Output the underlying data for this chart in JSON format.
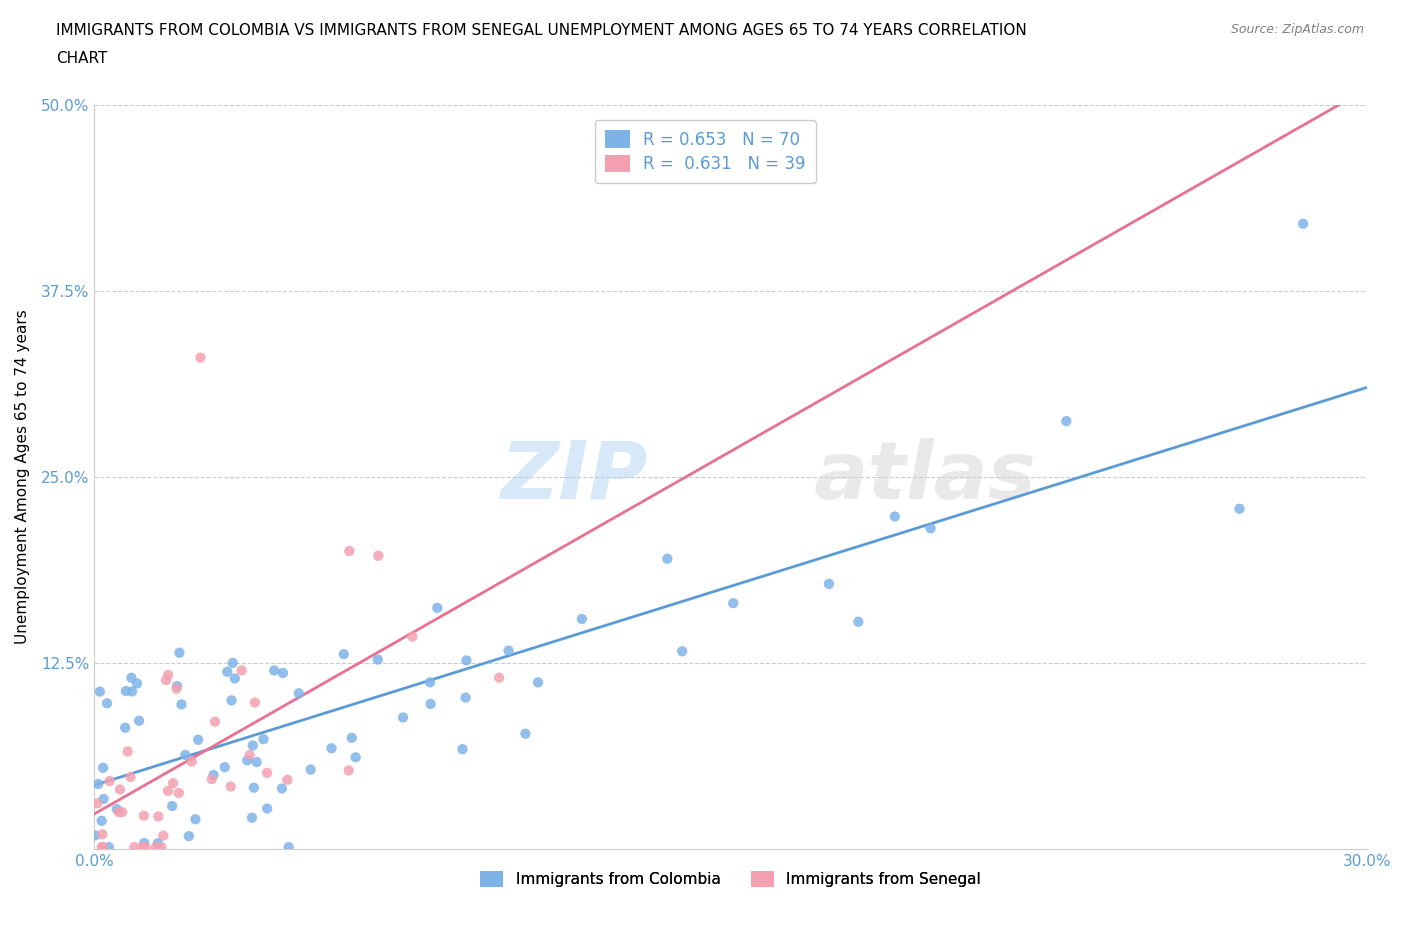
{
  "title_line1": "IMMIGRANTS FROM COLOMBIA VS IMMIGRANTS FROM SENEGAL UNEMPLOYMENT AMONG AGES 65 TO 74 YEARS CORRELATION",
  "title_line2": "CHART",
  "source_text": "Source: ZipAtlas.com",
  "ylabel": "Unemployment Among Ages 65 to 74 years",
  "watermark_zip": "ZIP",
  "watermark_atlas": "atlas",
  "xlim": [
    0.0,
    0.3
  ],
  "ylim": [
    0.0,
    0.5
  ],
  "yticks": [
    0.0,
    0.125,
    0.25,
    0.375,
    0.5
  ],
  "yticklabels": [
    "",
    "12.5%",
    "25.0%",
    "37.5%",
    "50.0%"
  ],
  "colombia_R": 0.653,
  "colombia_N": 70,
  "senegal_R": 0.631,
  "senegal_N": 39,
  "colombia_color": "#7EB3E8",
  "senegal_color": "#F4A0B0",
  "colombia_line_color": "#5B9BD5",
  "senegal_line_color": "#E87090",
  "grid_color": "#CCCCCC",
  "tick_label_color": "#5B9BD5",
  "legend_bottom_col": "Immigrants from Colombia",
  "legend_bottom_sen": "Immigrants from Senegal"
}
